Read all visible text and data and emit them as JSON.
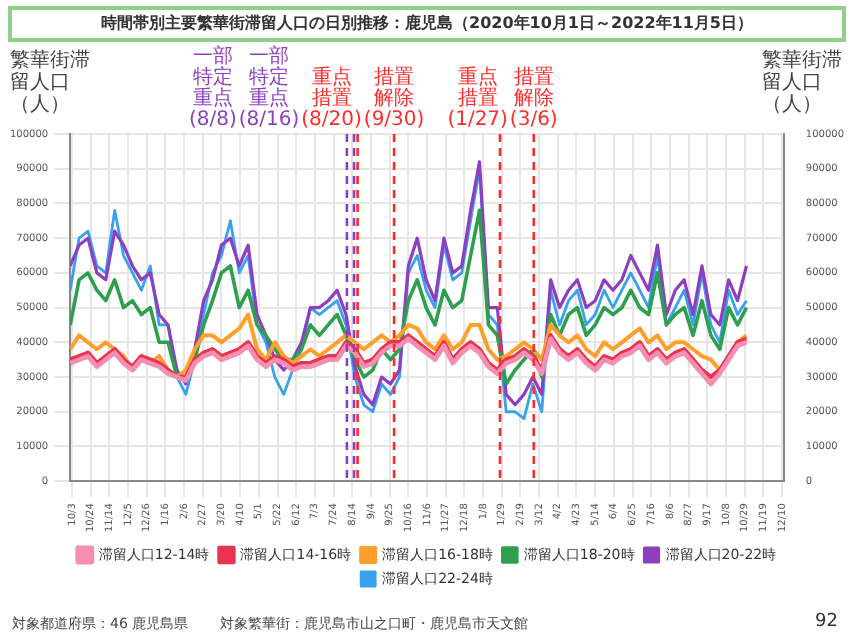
{
  "chart_data": {
    "type": "line",
    "title": "時間帯別主要繁華街滞留人口の日別推移：鹿児島（2020年10月1日～2022年11月5日）",
    "ylabel": "繁華街滞留人口（人）",
    "y2label": "繁華街滞留人口（人）",
    "x": [
      "2020-10-01",
      "2020-10-11",
      "2020-10-21",
      "2020-10-31",
      "2020-11-10",
      "2020-11-20",
      "2020-11-30",
      "2020-12-10",
      "2020-12-20",
      "2020-12-30",
      "2021-01-09",
      "2021-01-19",
      "2021-01-29",
      "2021-02-08",
      "2021-02-18",
      "2021-02-28",
      "2021-03-10",
      "2021-03-20",
      "2021-03-30",
      "2021-04-09",
      "2021-04-19",
      "2021-04-29",
      "2021-05-09",
      "2021-05-19",
      "2021-05-29",
      "2021-06-08",
      "2021-06-18",
      "2021-06-28",
      "2021-07-08",
      "2021-07-18",
      "2021-07-28",
      "2021-08-07",
      "2021-08-17",
      "2021-08-27",
      "2021-09-06",
      "2021-09-16",
      "2021-09-26",
      "2021-10-06",
      "2021-10-16",
      "2021-10-26",
      "2021-11-05",
      "2021-11-15",
      "2021-11-25",
      "2021-12-05",
      "2021-12-15",
      "2021-12-25",
      "2022-01-04",
      "2022-01-14",
      "2022-01-24",
      "2022-02-03",
      "2022-02-13",
      "2022-02-23",
      "2022-03-05",
      "2022-03-15",
      "2022-03-25",
      "2022-04-04",
      "2022-04-14",
      "2022-04-24",
      "2022-05-04",
      "2022-05-14",
      "2022-05-24",
      "2022-06-03",
      "2022-06-13",
      "2022-06-23",
      "2022-07-03",
      "2022-07-13",
      "2022-07-23",
      "2022-08-02",
      "2022-08-12",
      "2022-08-22",
      "2022-09-01",
      "2022-09-11",
      "2022-09-21",
      "2022-10-01",
      "2022-10-11",
      "2022-10-21",
      "2022-10-31"
    ],
    "series": [
      {
        "name": "滞留人口12-14時",
        "color": "#f48fb1",
        "values": [
          34000,
          35000,
          36000,
          33000,
          35000,
          37000,
          34000,
          32000,
          35000,
          34000,
          33000,
          31000,
          30000,
          29000,
          34000,
          36000,
          37000,
          35000,
          36000,
          37000,
          39000,
          35000,
          33000,
          35000,
          34000,
          32000,
          33000,
          33000,
          34000,
          35000,
          35000,
          39000,
          37000,
          33000,
          34000,
          37000,
          39000,
          39000,
          41000,
          39000,
          37000,
          35000,
          39000,
          34000,
          37000,
          39000,
          37000,
          33000,
          31000,
          34000,
          35000,
          37000,
          35000,
          31000,
          41000,
          37000,
          35000,
          37000,
          34000,
          32000,
          35000,
          34000,
          36000,
          37000,
          39000,
          35000,
          37000,
          34000,
          36000,
          37000,
          34000,
          31000,
          28000,
          31000,
          35000,
          39000,
          40000
        ]
      },
      {
        "name": "滞留人口14-16時",
        "color": "#e8344e",
        "values": [
          35000,
          36000,
          37000,
          34000,
          36000,
          38000,
          35000,
          33000,
          36000,
          35000,
          34000,
          32000,
          30000,
          30000,
          35000,
          37000,
          38000,
          36000,
          37000,
          38000,
          40000,
          36000,
          34000,
          36000,
          35000,
          33000,
          34000,
          34000,
          35000,
          36000,
          36000,
          40000,
          38000,
          34000,
          35000,
          38000,
          40000,
          40000,
          42000,
          40000,
          38000,
          36000,
          40000,
          35000,
          38000,
          40000,
          38000,
          34000,
          32000,
          35000,
          36000,
          38000,
          36000,
          32000,
          42000,
          38000,
          36000,
          38000,
          35000,
          33000,
          36000,
          35000,
          37000,
          38000,
          40000,
          36000,
          38000,
          35000,
          37000,
          38000,
          35000,
          32000,
          30000,
          32000,
          36000,
          40000,
          41000
        ]
      },
      {
        "name": "滞留人口16-18時",
        "color": "#ff9f2e",
        "values": [
          38000,
          42000,
          40000,
          38000,
          40000,
          38000,
          36000,
          32000,
          35000,
          34000,
          36000,
          32000,
          30000,
          32000,
          38000,
          42000,
          42000,
          40000,
          42000,
          44000,
          48000,
          38000,
          35000,
          40000,
          36000,
          34000,
          36000,
          38000,
          36000,
          38000,
          40000,
          42000,
          40000,
          38000,
          40000,
          42000,
          40000,
          42000,
          45000,
          44000,
          40000,
          38000,
          42000,
          38000,
          40000,
          45000,
          45000,
          38000,
          35000,
          36000,
          38000,
          40000,
          38000,
          35000,
          45000,
          42000,
          40000,
          42000,
          38000,
          36000,
          40000,
          38000,
          40000,
          42000,
          44000,
          40000,
          42000,
          38000,
          40000,
          40000,
          38000,
          36000,
          35000,
          32000,
          35000,
          40000,
          42000
        ]
      },
      {
        "name": "滞留人口18-20時",
        "color": "#2e9e4f",
        "values": [
          45000,
          58000,
          60000,
          55000,
          52000,
          58000,
          50000,
          52000,
          48000,
          50000,
          40000,
          40000,
          30000,
          30000,
          35000,
          45000,
          52000,
          60000,
          62000,
          50000,
          55000,
          45000,
          42000,
          38000,
          35000,
          35000,
          38000,
          45000,
          42000,
          45000,
          48000,
          42000,
          35000,
          30000,
          32000,
          38000,
          35000,
          38000,
          52000,
          58000,
          50000,
          45000,
          55000,
          50000,
          52000,
          65000,
          78000,
          45000,
          42000,
          28000,
          32000,
          35000,
          38000,
          30000,
          48000,
          42000,
          48000,
          50000,
          42000,
          45000,
          50000,
          48000,
          50000,
          55000,
          50000,
          48000,
          60000,
          45000,
          48000,
          50000,
          42000,
          52000,
          42000,
          38000,
          50000,
          45000,
          50000
        ]
      },
      {
        "name": "滞留人口20-22時",
        "color": "#8e3fc0",
        "values": [
          62000,
          68000,
          70000,
          60000,
          58000,
          72000,
          68000,
          62000,
          58000,
          60000,
          48000,
          45000,
          32000,
          28000,
          38000,
          52000,
          58000,
          68000,
          70000,
          62000,
          68000,
          48000,
          42000,
          35000,
          32000,
          35000,
          40000,
          50000,
          50000,
          52000,
          55000,
          48000,
          33000,
          25000,
          22000,
          30000,
          28000,
          32000,
          62000,
          70000,
          58000,
          52000,
          70000,
          60000,
          62000,
          78000,
          92000,
          50000,
          50000,
          25000,
          22000,
          25000,
          30000,
          25000,
          58000,
          50000,
          55000,
          58000,
          50000,
          52000,
          58000,
          55000,
          58000,
          65000,
          60000,
          55000,
          68000,
          48000,
          55000,
          58000,
          48000,
          62000,
          48000,
          45000,
          58000,
          52000,
          62000
        ]
      },
      {
        "name": "滞留人口22-24時",
        "color": "#3aa0f0",
        "values": [
          55000,
          70000,
          72000,
          62000,
          60000,
          78000,
          65000,
          60000,
          55000,
          62000,
          45000,
          45000,
          30000,
          25000,
          35000,
          48000,
          60000,
          65000,
          75000,
          60000,
          65000,
          45000,
          40000,
          30000,
          25000,
          32000,
          38000,
          50000,
          48000,
          50000,
          52000,
          45000,
          30000,
          22000,
          20000,
          28000,
          25000,
          30000,
          60000,
          65000,
          55000,
          50000,
          68000,
          58000,
          60000,
          75000,
          90000,
          48000,
          45000,
          20000,
          20000,
          18000,
          28000,
          20000,
          55000,
          45000,
          52000,
          55000,
          45000,
          48000,
          55000,
          50000,
          55000,
          60000,
          55000,
          50000,
          65000,
          45000,
          50000,
          55000,
          45000,
          60000,
          45000,
          40000,
          55000,
          48000,
          52000
        ]
      }
    ],
    "xlim": [
      "2020-10-01",
      "2022-12-12"
    ],
    "xticks": [
      {
        "value": "2020-10-03",
        "label": "10/3"
      },
      {
        "value": "2020-10-24",
        "label": "10/24"
      },
      {
        "value": "2020-11-14",
        "label": "11/14"
      },
      {
        "value": "2020-12-05",
        "label": "12/5"
      },
      {
        "value": "2020-12-26",
        "label": "12/26"
      },
      {
        "value": "2021-01-16",
        "label": "1/16"
      },
      {
        "value": "2021-02-06",
        "label": "2/6"
      },
      {
        "value": "2021-02-27",
        "label": "2/27"
      },
      {
        "value": "2021-03-20",
        "label": "3/20"
      },
      {
        "value": "2021-04-10",
        "label": "4/10"
      },
      {
        "value": "2021-05-01",
        "label": "5/1"
      },
      {
        "value": "2021-05-22",
        "label": "5/22"
      },
      {
        "value": "2021-06-12",
        "label": "6/12"
      },
      {
        "value": "2021-07-03",
        "label": "7/3"
      },
      {
        "value": "2021-07-24",
        "label": "7/24"
      },
      {
        "value": "2021-08-14",
        "label": "8/14"
      },
      {
        "value": "2021-09-04",
        "label": "9/4"
      },
      {
        "value": "2021-09-25",
        "label": "9/25"
      },
      {
        "value": "2021-10-16",
        "label": "10/16"
      },
      {
        "value": "2021-11-06",
        "label": "11/6"
      },
      {
        "value": "2021-11-27",
        "label": "11/27"
      },
      {
        "value": "2021-12-18",
        "label": "12/18"
      },
      {
        "value": "2022-01-08",
        "label": "1/8"
      },
      {
        "value": "2022-01-29",
        "label": "1/29"
      },
      {
        "value": "2022-02-19",
        "label": "2/19"
      },
      {
        "value": "2022-03-12",
        "label": "3/12"
      },
      {
        "value": "2022-04-02",
        "label": "4/2"
      },
      {
        "value": "2022-04-23",
        "label": "4/23"
      },
      {
        "value": "2022-05-14",
        "label": "5/14"
      },
      {
        "value": "2022-06-04",
        "label": "6/4"
      },
      {
        "value": "2022-06-25",
        "label": "6/25"
      },
      {
        "value": "2022-07-16",
        "label": "7/16"
      },
      {
        "value": "2022-08-06",
        "label": "8/6"
      },
      {
        "value": "2022-08-27",
        "label": "8/27"
      },
      {
        "value": "2022-09-17",
        "label": "9/17"
      },
      {
        "value": "2022-10-08",
        "label": "10/8"
      },
      {
        "value": "2022-10-29",
        "label": "10/29"
      },
      {
        "value": "2022-11-19",
        "label": "11/19"
      },
      {
        "value": "2022-12-10",
        "label": "12/10"
      }
    ],
    "ylim": [
      0,
      100000
    ],
    "yticks": [
      0,
      10000,
      20000,
      30000,
      40000,
      50000,
      60000,
      70000,
      80000,
      90000,
      100000
    ],
    "y2lim": [
      0,
      100000
    ],
    "y2ticks": [
      0,
      10000,
      20000,
      30000,
      40000,
      50000,
      60000,
      70000,
      80000,
      90000,
      100000
    ],
    "ref_lines": [
      {
        "axis": "x",
        "value": "2021-08-08",
        "label": "一部特定重点(8/8)",
        "color": "#8e3fc0",
        "line_style": "dashed"
      },
      {
        "axis": "x",
        "value": "2021-08-16",
        "label": "一部特定重点(8/16)",
        "color": "#8e3fc0",
        "line_style": "dashed"
      },
      {
        "axis": "x",
        "value": "2021-08-20",
        "label": "重点措置(8/20)",
        "color": "#ff2a2a",
        "line_style": "dashed"
      },
      {
        "axis": "x",
        "value": "2021-09-30",
        "label": "措置解除(9/30)",
        "color": "#ff2a2a",
        "line_style": "dashed"
      },
      {
        "axis": "x",
        "value": "2022-01-27",
        "label": "重点措置(1/27)",
        "color": "#ff2a2a",
        "line_style": "dashed"
      },
      {
        "axis": "x",
        "value": "2022-03-06",
        "label": "措置解除(3/6)",
        "color": "#ff2a2a",
        "line_style": "dashed"
      }
    ],
    "grid": true,
    "legend": "bottom",
    "annotations": [
      "対象都道府県：46 鹿児島県",
      "対象繁華街：鹿児島市山之口町・鹿児島市天文館",
      "92"
    ]
  }
}
